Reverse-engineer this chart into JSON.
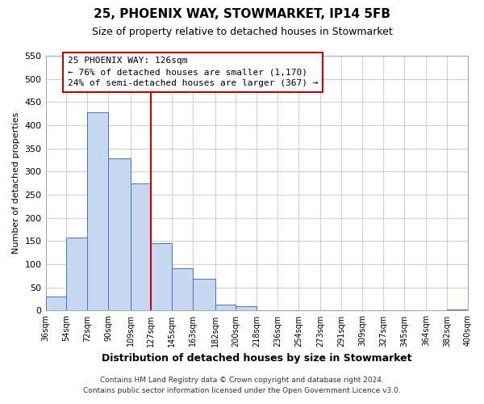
{
  "title": "25, PHOENIX WAY, STOWMARKET, IP14 5FB",
  "subtitle": "Size of property relative to detached houses in Stowmarket",
  "xlabel": "Distribution of detached houses by size in Stowmarket",
  "ylabel": "Number of detached properties",
  "bar_left_edges": [
    36,
    54,
    72,
    90,
    109,
    127,
    145,
    163,
    182,
    200,
    218,
    236,
    254,
    273,
    291,
    309,
    327,
    345,
    364,
    382
  ],
  "bar_widths": [
    18,
    18,
    18,
    19,
    18,
    18,
    18,
    19,
    18,
    18,
    18,
    18,
    19,
    18,
    18,
    18,
    18,
    19,
    18,
    18
  ],
  "bar_heights": [
    30,
    157,
    428,
    328,
    275,
    145,
    92,
    68,
    13,
    10,
    0,
    0,
    0,
    0,
    0,
    0,
    0,
    0,
    0,
    2
  ],
  "xtick_labels": [
    "36sqm",
    "54sqm",
    "72sqm",
    "90sqm",
    "109sqm",
    "127sqm",
    "145sqm",
    "163sqm",
    "182sqm",
    "200sqm",
    "218sqm",
    "236sqm",
    "254sqm",
    "273sqm",
    "291sqm",
    "309sqm",
    "327sqm",
    "345sqm",
    "364sqm",
    "382sqm",
    "400sqm"
  ],
  "ylim": [
    0,
    550
  ],
  "yticks": [
    0,
    50,
    100,
    150,
    200,
    250,
    300,
    350,
    400,
    450,
    500,
    550
  ],
  "xlim": [
    36,
    400
  ],
  "bar_color": "#c6d9f0",
  "bar_edge_color": "#4472c4",
  "ref_line_x": 127,
  "ref_line_color": "#cc0000",
  "box_text_line1": "25 PHOENIX WAY: 126sqm",
  "box_text_line2": "← 76% of detached houses are smaller (1,170)",
  "box_text_line3": "24% of semi-detached houses are larger (367) →",
  "box_edge_color": "#cc0000",
  "footnote1": "Contains HM Land Registry data © Crown copyright and database right 2024.",
  "footnote2": "Contains public sector information licensed under the Open Government Licence v3.0.",
  "background_color": "#ffffff",
  "grid_color": "#d0d0d0"
}
